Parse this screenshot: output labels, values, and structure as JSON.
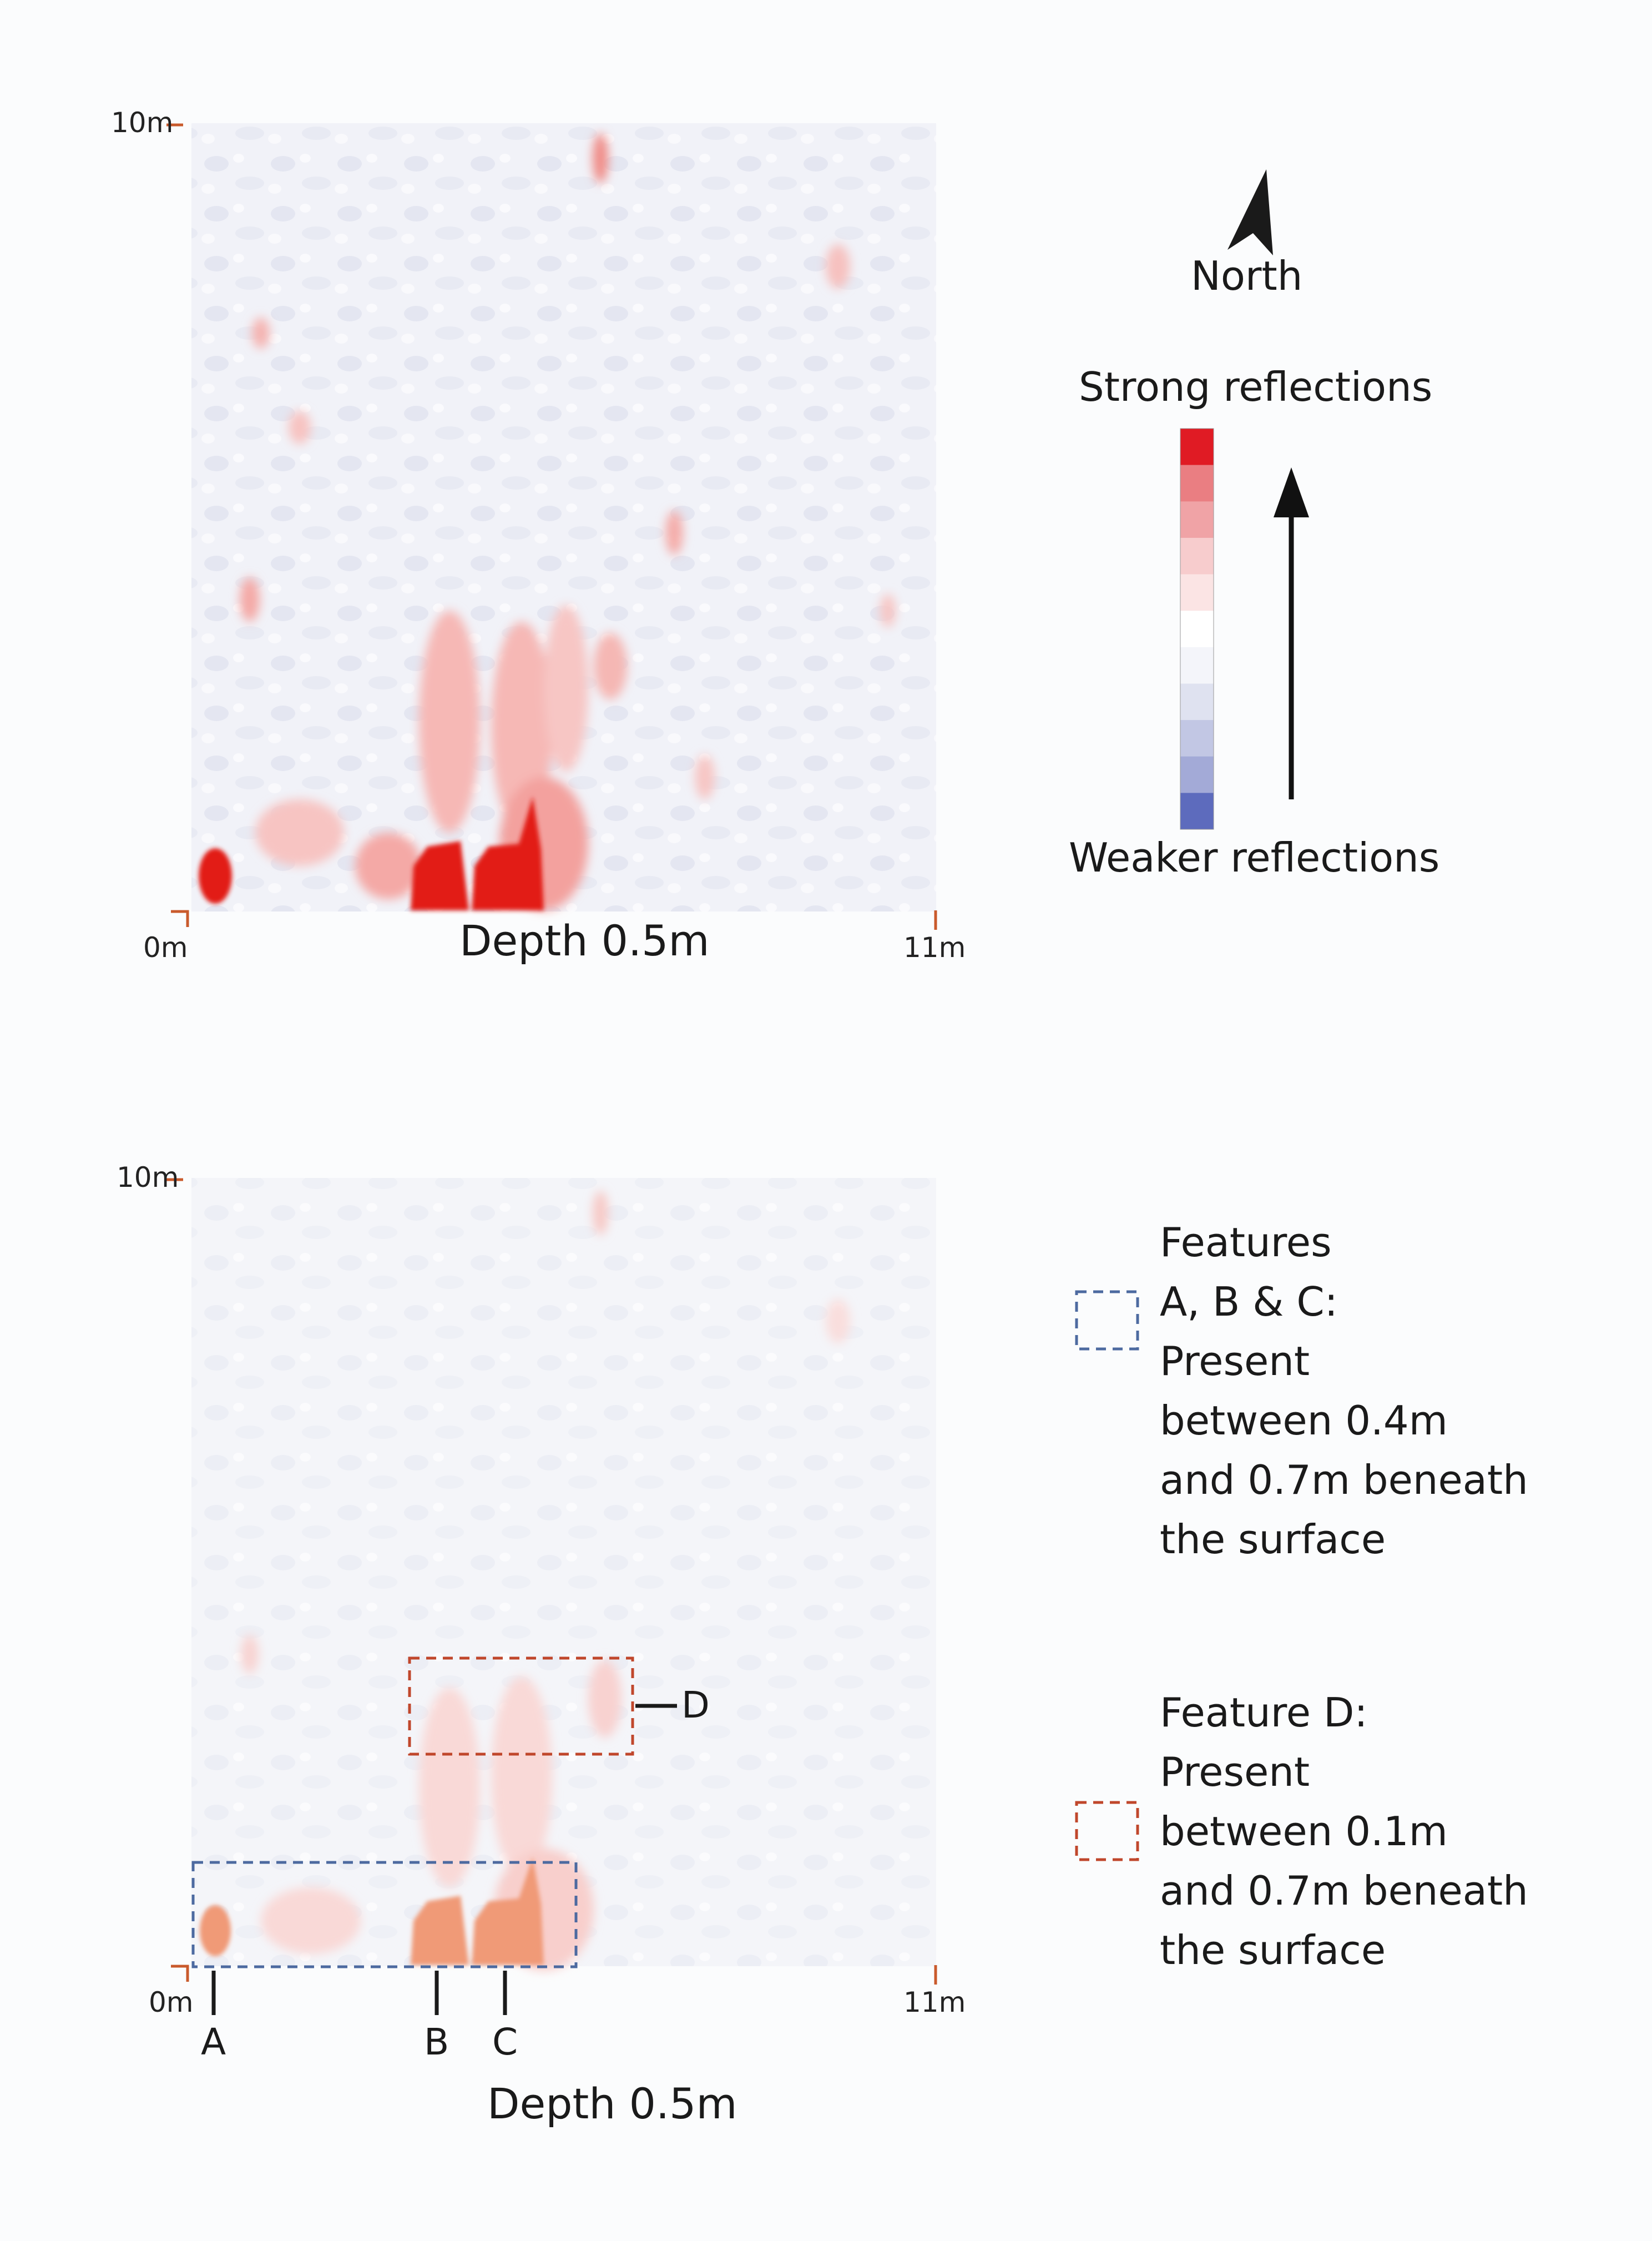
{
  "top_map": {
    "y_top_label": "10m",
    "x_left_label": "0m",
    "x_right_label": "11m",
    "caption": "Depth 0.5m"
  },
  "north": {
    "label": "North"
  },
  "scale": {
    "top_label": "Strong reflections",
    "bottom_label": "Weaker reflections",
    "swatches": [
      "#e01b24",
      "#ea7e82",
      "#f0a3a6",
      "#f7cccd",
      "#fbe4e4",
      "#ffffff",
      "#f4f5fa",
      "#dfe2f0",
      "#c2c7e4",
      "#a3aad7",
      "#5d6bbd"
    ]
  },
  "bottom_map": {
    "y_top_label": "10m",
    "x_left_label": "0m",
    "x_right_label": "11m",
    "caption": "Depth 0.5m",
    "markers": [
      "A",
      "B",
      "C",
      "D"
    ]
  },
  "legend": {
    "blue_box_color": "#4d6aa0",
    "red_box_color": "#c0472c",
    "features_abc": [
      "Features",
      "A, B & C:",
      "Present",
      "between 0.4m",
      "and 0.7m beneath",
      "the surface"
    ],
    "feature_d": [
      "Feature D:",
      "Present",
      "between 0.1m",
      "and 0.7m beneath",
      "the surface"
    ]
  }
}
